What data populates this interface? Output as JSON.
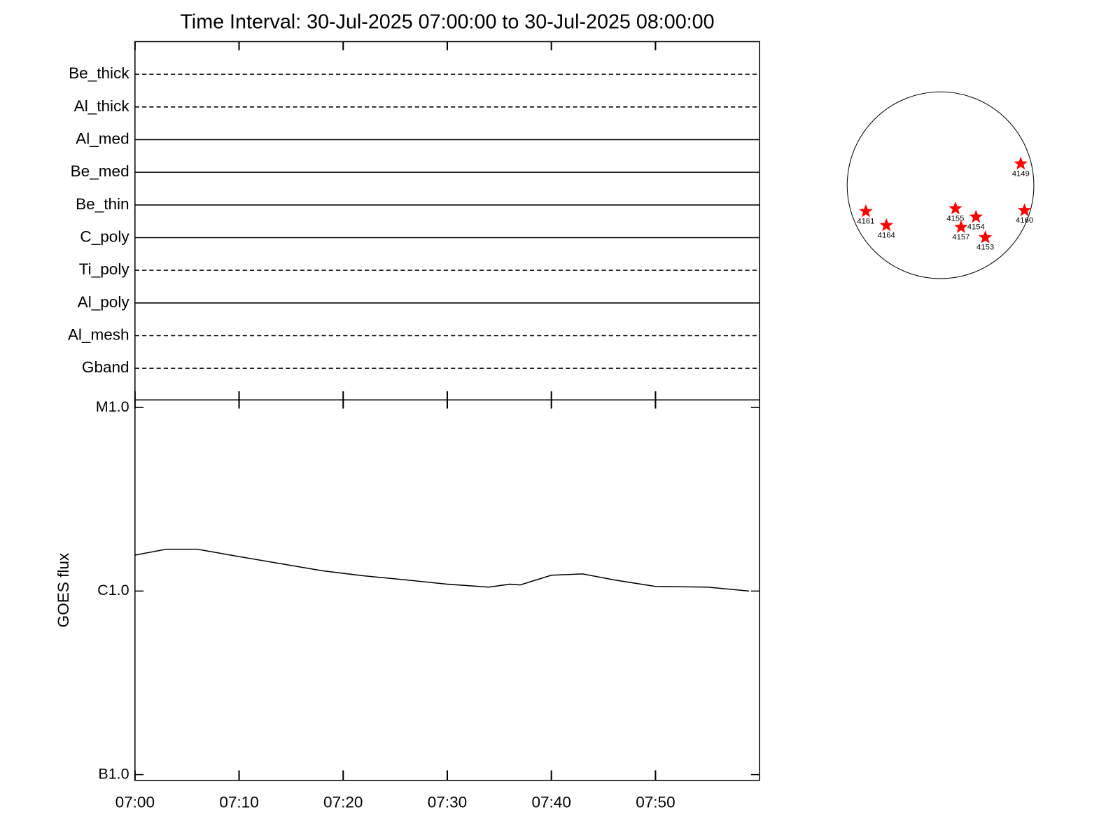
{
  "chart_data": [
    {
      "type": "filters",
      "title": "Time Interval: 30-Jul-2025 07:00:00 to 30-Jul-2025 08:00:00",
      "rows": [
        {
          "name": "Be_thick",
          "style": "dashed"
        },
        {
          "name": "Al_thick",
          "style": "dashed"
        },
        {
          "name": "Al_med",
          "style": "solid"
        },
        {
          "name": "Be_med",
          "style": "solid"
        },
        {
          "name": "Be_thin",
          "style": "solid"
        },
        {
          "name": "C_poly",
          "style": "solid"
        },
        {
          "name": "Ti_poly",
          "style": "dashed"
        },
        {
          "name": "Al_poly",
          "style": "solid"
        },
        {
          "name": "Al_mesh",
          "style": "dashed"
        },
        {
          "name": "Gband",
          "style": "dashed"
        }
      ],
      "xlim": [
        "07:00",
        "08:00"
      ],
      "xticks": [
        "07:00",
        "07:10",
        "07:20",
        "07:30",
        "07:40",
        "07:50"
      ]
    },
    {
      "type": "line",
      "ylabel": "GOES flux",
      "color": "#000000",
      "log_scale": true,
      "x": [
        "07:00",
        "07:03",
        "07:06",
        "07:10",
        "07:14",
        "07:18",
        "07:22",
        "07:26",
        "07:30",
        "07:34",
        "07:36",
        "07:37",
        "07:40",
        "07:43",
        "07:46",
        "07:50",
        "07:55",
        "07:59"
      ],
      "values": [
        1.57e-06,
        1.69e-06,
        1.69e-06,
        1.54e-06,
        1.41e-06,
        1.29e-06,
        1.21e-06,
        1.15e-06,
        1.09e-06,
        1.05e-06,
        1.09e-06,
        1.08e-06,
        1.22e-06,
        1.24e-06,
        1.15e-06,
        1.06e-06,
        1.05e-06,
        1e-06
      ],
      "xlim": [
        "07:00",
        "08:00"
      ],
      "xticks": [
        "07:00",
        "07:10",
        "07:20",
        "07:30",
        "07:40",
        "07:50"
      ],
      "ylim": [
        9.3e-08,
        1.1e-05
      ],
      "yticks": [
        {
          "value": 1e-07,
          "label": "B1.0"
        },
        {
          "value": 1e-06,
          "label": "C1.0"
        },
        {
          "value": 1e-05,
          "label": "M1.0"
        }
      ]
    },
    {
      "type": "disk",
      "color": "#ff0000",
      "regions": [
        {
          "label": "4149",
          "x": 0.86,
          "y": 0.23
        },
        {
          "label": "4161",
          "x": -0.8,
          "y": -0.28
        },
        {
          "label": "4164",
          "x": -0.58,
          "y": -0.43
        },
        {
          "label": "4155",
          "x": 0.16,
          "y": -0.25
        },
        {
          "label": "4154",
          "x": 0.38,
          "y": -0.34
        },
        {
          "label": "4157",
          "x": 0.22,
          "y": -0.45
        },
        {
          "label": "4153",
          "x": 0.48,
          "y": -0.56
        },
        {
          "label": "4160",
          "x": 0.9,
          "y": -0.27
        }
      ]
    }
  ]
}
